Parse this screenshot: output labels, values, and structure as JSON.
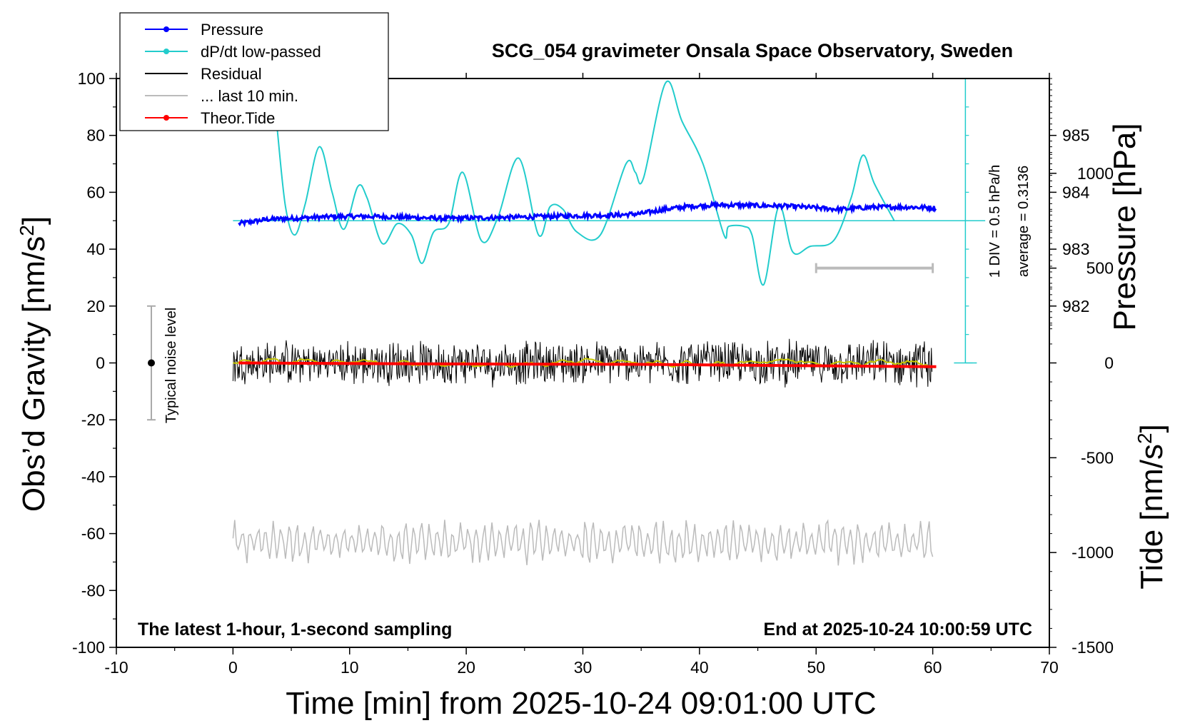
{
  "chart_data": {
    "type": "line",
    "title": "SCG_054 gravimeter Onsala Space Observatory, Sweden",
    "xlabel": "Time [min] from 2025-10-24 09:01:00 UTC",
    "ylabel_left": "Obs’d Gravity [nm/s",
    "ylabel_left_sup": "2",
    "ylabel_left_end": "]",
    "ylabel_right_pressure": "Pressure [hPa]",
    "ylabel_right_tide": "Tide [nm/s",
    "ylabel_right_tide_sup": "2",
    "ylabel_right_tide_end": "]",
    "xlim": [
      -10,
      70
    ],
    "ylim_left": [
      -100,
      100
    ],
    "ylim_tide": [
      -1500,
      1500
    ],
    "pressure_ticks": [
      {
        "label": "985",
        "g": 80
      },
      {
        "label": "984",
        "g": 60
      },
      {
        "label": "983",
        "g": 40
      },
      {
        "label": "982",
        "g": 20
      }
    ],
    "x_ticks": [
      "-10",
      "0",
      "10",
      "20",
      "30",
      "40",
      "50",
      "60",
      "70"
    ],
    "y_ticks_left": [
      "100",
      "80",
      "60",
      "40",
      "20",
      "0",
      "-20",
      "-40",
      "-60",
      "-80",
      "-100"
    ],
    "y_ticks_tide": [
      "1000",
      "500",
      "0",
      "-500",
      "-1000",
      "-1500"
    ],
    "legend": [
      {
        "label": "Pressure",
        "color": "#0000ff",
        "marker": true
      },
      {
        "label": "dP/dt low-passed",
        "color": "#22cccc",
        "marker": true
      },
      {
        "label": "Residual",
        "color": "#000000",
        "marker": false
      },
      {
        "label": "... last 10 min.",
        "color": "#bbbbbb",
        "marker": false
      },
      {
        "label": "Theor.Tide",
        "color": "#ff0000",
        "marker": true
      }
    ],
    "annotations": {
      "bottom_left": "The latest 1-hour, 1-second sampling",
      "bottom_right": "End at 2025-10-24 10:00:59 UTC",
      "noise": "Typical noise level",
      "div": "1 DIV = 0.5 hPa/h",
      "average": "average = 0.3136"
    },
    "series": [
      {
        "name": "Pressure",
        "color": "#0000ff",
        "x": [
          0.5,
          3,
          6,
          9,
          12,
          15,
          18,
          21,
          24,
          27,
          30,
          33,
          35,
          37,
          39,
          41,
          43,
          45,
          47,
          49,
          52,
          55,
          58,
          60.3
        ],
        "y": [
          49.0,
          50.5,
          51.0,
          51.5,
          51.5,
          51.2,
          50.8,
          51.0,
          51.2,
          51.5,
          51.8,
          52.0,
          52.5,
          54.0,
          55.0,
          55.5,
          55.5,
          55.3,
          55.2,
          54.8,
          54.0,
          54.8,
          54.8,
          54.5
        ]
      },
      {
        "name": "dP/dt low-passed",
        "color": "#22cccc",
        "x": [
          3.8,
          4.5,
          5.3,
          6.2,
          7.4,
          8.5,
          9.5,
          10.7,
          11.5,
          12.8,
          14.1,
          15.3,
          16.2,
          17.2,
          18.5,
          19.7,
          21.3,
          22.7,
          24.5,
          26.2,
          27.2,
          28.3,
          29.5,
          31.5,
          33.7,
          34.5,
          35.2,
          37.1,
          38.5,
          40.3,
          42.1,
          42.5,
          43.8,
          44.5,
          45.5,
          46.8,
          48.0,
          49.5,
          51.5,
          53.0,
          54.0,
          55.0,
          56.7
        ],
        "y": [
          82,
          55,
          45,
          56,
          76,
          60,
          47,
          62,
          58,
          42,
          49,
          45,
          35,
          46,
          49,
          67,
          43,
          51,
          72,
          45,
          55,
          54,
          46,
          45,
          70,
          67,
          65,
          98.5,
          85,
          70,
          45,
          48,
          48,
          45,
          27.5,
          55,
          39,
          41,
          43,
          58,
          73,
          63,
          50
        ]
      },
      {
        "name": "Residual",
        "color": "#000000",
        "x": [
          0,
          60
        ],
        "y": [
          0,
          0
        ],
        "noise_amplitude": 8
      },
      {
        "name": "... last 10 min.",
        "color": "#bbbbbb",
        "x": [
          0,
          60
        ],
        "y": [
          -63,
          -63
        ],
        "noise_amplitude": 6
      },
      {
        "name": "Theor.Tide",
        "color": "#ff0000",
        "x": [
          0.5,
          16,
          36,
          50,
          60.3
        ],
        "y": [
          0,
          -5,
          -8,
          -15,
          -20
        ]
      }
    ],
    "last10_bar": {
      "x": [
        50,
        60
      ],
      "tide": 500
    }
  }
}
